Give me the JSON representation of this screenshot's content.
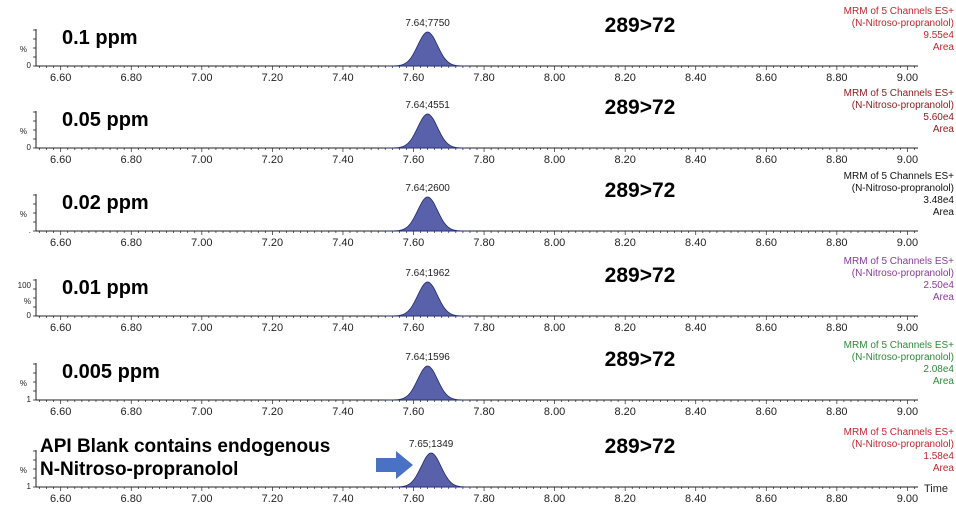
{
  "chart_data": {
    "type": "area",
    "x_ticks": [
      "6.60",
      "6.80",
      "7.00",
      "7.20",
      "7.40",
      "7.60",
      "7.80",
      "8.00",
      "8.20",
      "8.40",
      "8.60",
      "8.80",
      "9.00"
    ],
    "xlim": [
      6.53,
      9.03
    ],
    "x_axis_label": "Time",
    "peak_color": "#4f58a4",
    "panels": [
      {
        "concentration": "0.1 ppm",
        "transition": "289>72",
        "peak_time": 7.64,
        "peak_label": "7.64;7750",
        "y_ticks": [
          "%",
          "0"
        ],
        "info": [
          "MRM of 5 Channels ES+",
          "(N-Nitroso-propranolol)",
          "9.55e4",
          "Area"
        ],
        "info_color": "#c0272d"
      },
      {
        "concentration": "0.05 ppm",
        "transition": "289>72",
        "peak_time": 7.64,
        "peak_label": "7.64;4551",
        "y_ticks": [
          "%",
          "0"
        ],
        "info": [
          "MRM of 5 Channels ES+",
          "(N-Nitroso-propranolol)",
          "5.60e4",
          "Area"
        ],
        "info_color": "#8b1a1a"
      },
      {
        "concentration": "0.02 ppm",
        "transition": "289>72",
        "peak_time": 7.64,
        "peak_label": "7.64;2600",
        "y_ticks": [
          "%",
          "."
        ],
        "info": [
          "MRM of 5 Channels ES+",
          "(N-Nitroso-propranolol)",
          "3.48e4",
          "Area"
        ],
        "info_color": "#111111"
      },
      {
        "concentration": "0.01 ppm",
        "transition": "289>72",
        "peak_time": 7.64,
        "peak_label": "7.64;1962",
        "y_ticks": [
          "100",
          "%",
          "0"
        ],
        "info": [
          "MRM of 5 Channels ES+",
          "(N-Nitroso-propranolol)",
          "2.50e4",
          "Area"
        ],
        "info_color": "#8a3a9e"
      },
      {
        "concentration": "0.005 ppm",
        "transition": "289>72",
        "peak_time": 7.64,
        "peak_label": "7.64;1596",
        "y_ticks": [
          "%",
          "1"
        ],
        "info": [
          "MRM of 5 Channels ES+",
          "(N-Nitroso-propranolol)",
          "2.08e4",
          "Area"
        ],
        "info_color": "#2e8b3a"
      },
      {
        "concentration": "",
        "transition": "289>72",
        "peak_time": 7.65,
        "peak_label": "7.65;1349",
        "y_ticks": [
          "%",
          "1"
        ],
        "info": [
          "MRM of 5 Channels ES+",
          "(N-Nitroso-propranolol)",
          "1.58e4",
          "Area"
        ],
        "info_color": "#c0272d",
        "note_lines": [
          "API Blank contains endogenous",
          "N-Nitroso-propranolol"
        ]
      }
    ]
  }
}
